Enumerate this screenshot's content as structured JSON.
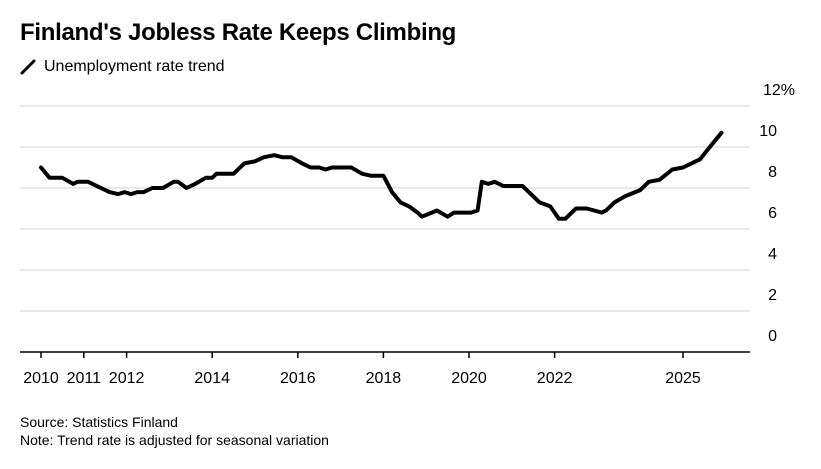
{
  "title": "Finland's Jobless Rate Keeps Climbing",
  "legend_label": "Unemployment rate trend",
  "source": "Source: Statistics Finland",
  "note": "Note: Trend rate is adjusted for seasonal variation",
  "chart_data": {
    "type": "line",
    "title": "Finland's Jobless Rate Keeps Climbing",
    "xlabel": "",
    "ylabel": "",
    "ylim": [
      0,
      12
    ],
    "xlim": [
      2010,
      2026.9
    ],
    "y_ticks": [
      0,
      2,
      4,
      6,
      8,
      10,
      12
    ],
    "y_tick_labels": [
      "0",
      "2",
      "4",
      "6",
      "8",
      "10",
      "12%"
    ],
    "x_ticks": [
      2010,
      2011,
      2012,
      2014,
      2016,
      2018,
      2020,
      2022,
      2025
    ],
    "x_tick_labels": [
      "2010",
      "2011",
      "2012",
      "2014",
      "2016",
      "2018",
      "2020",
      "2022",
      "2025"
    ],
    "grid": true,
    "legend": "top-left",
    "series": [
      {
        "name": "Unemployment rate trend",
        "color": "#000000",
        "x": [
          2010.0,
          2010.2,
          2010.5,
          2010.75,
          2010.85,
          2011.1,
          2011.4,
          2011.6,
          2011.8,
          2011.95,
          2012.1,
          2012.25,
          2012.4,
          2012.6,
          2012.85,
          2013.1,
          2013.2,
          2013.4,
          2013.6,
          2013.85,
          2014.0,
          2014.1,
          2014.5,
          2014.75,
          2015.0,
          2015.2,
          2015.45,
          2015.65,
          2015.85,
          2016.1,
          2016.3,
          2016.5,
          2016.65,
          2016.8,
          2017.25,
          2017.5,
          2017.7,
          2018.0,
          2018.2,
          2018.4,
          2018.6,
          2018.8,
          2018.9,
          2019.25,
          2019.5,
          2019.65,
          2020.05,
          2020.2,
          2020.3,
          2020.45,
          2020.6,
          2020.8,
          2021.25,
          2021.65,
          2021.9,
          2022.1,
          2022.25,
          2022.5,
          2022.75,
          2023.1,
          2023.2,
          2023.4,
          2023.65,
          2024.0,
          2024.2,
          2024.45,
          2024.75,
          2025.0,
          2025.3,
          2025.4,
          2025.55,
          2025.9
        ],
        "values": [
          9.0,
          8.5,
          8.5,
          8.2,
          8.3,
          8.3,
          8.0,
          7.8,
          7.7,
          7.8,
          7.7,
          7.8,
          7.8,
          8.0,
          8.0,
          8.3,
          8.3,
          8.0,
          8.2,
          8.5,
          8.5,
          8.7,
          8.7,
          9.2,
          9.3,
          9.5,
          9.6,
          9.5,
          9.5,
          9.2,
          9.0,
          9.0,
          8.9,
          9.0,
          9.0,
          8.7,
          8.6,
          8.6,
          7.8,
          7.3,
          7.1,
          6.8,
          6.6,
          6.9,
          6.6,
          6.8,
          6.8,
          6.9,
          8.3,
          8.2,
          8.3,
          8.1,
          8.1,
          7.3,
          7.1,
          6.5,
          6.5,
          7.0,
          7.0,
          6.8,
          6.9,
          7.3,
          7.6,
          7.9,
          8.3,
          8.4,
          8.9,
          9.0,
          9.3,
          9.4,
          9.8,
          10.7
        ]
      }
    ]
  }
}
